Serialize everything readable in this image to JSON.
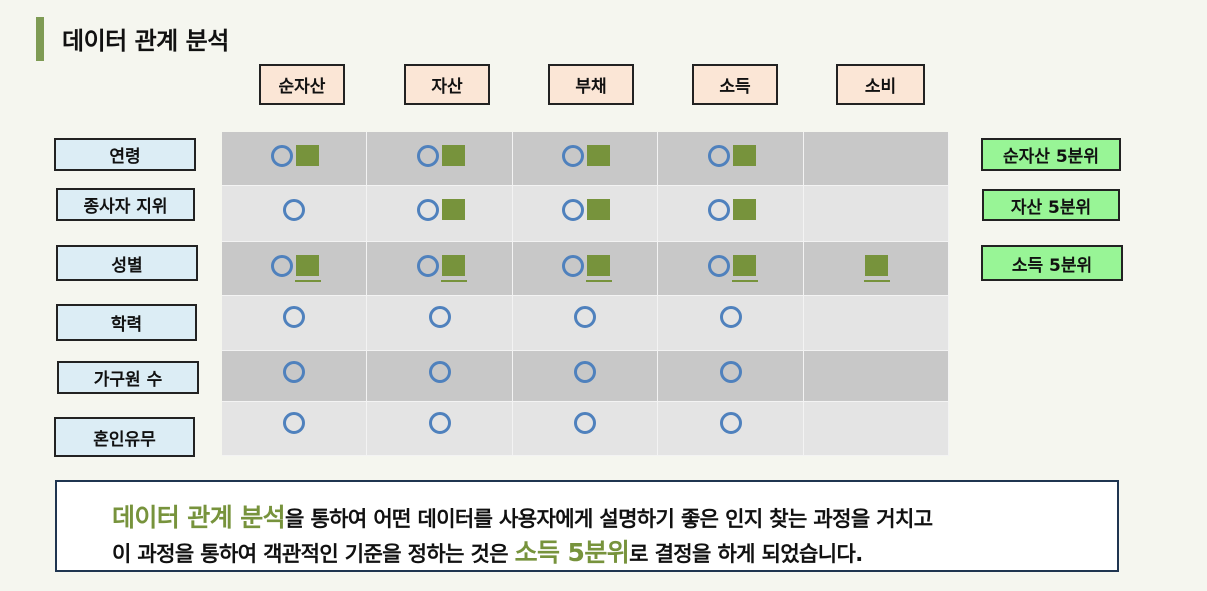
{
  "title": "데이터 관계 분석",
  "columns": [
    "순자산",
    "자산",
    "부채",
    "소득",
    "소비"
  ],
  "rows": [
    "연령",
    "종사자 지위",
    "성별",
    "학력",
    "가구원 수",
    "혼인유무"
  ],
  "matrix": [
    [
      "OS",
      "OS",
      "OS",
      "OS",
      ""
    ],
    [
      "O",
      "OS",
      "OS",
      "OS",
      ""
    ],
    [
      "OSU",
      "OSU",
      "OSU",
      "OSU",
      "SU"
    ],
    [
      "O",
      "O",
      "O",
      "O",
      ""
    ],
    [
      "O",
      "O",
      "O",
      "O",
      ""
    ],
    [
      "O",
      "O",
      "O",
      "O",
      ""
    ]
  ],
  "legend": {
    "circle": "circle-mark",
    "square": "square-mark",
    "colors": {
      "circle": "#4f81bd",
      "square": "#77933c",
      "accent": "#7e9b54"
    }
  },
  "quintiles": [
    "순자산 5분위",
    "자산 5분위",
    "소득 5분위"
  ],
  "conclusion": {
    "line1_highlight": "데이터 관계 분석",
    "line1_rest": "을 통하여 어떤 데이터를 사용자에게 설명하기 좋은 인지 찾는 과정을 거치고",
    "line2_pre": "이 과정을 통하여 객관적인 기준을 정하는 것은 ",
    "line2_highlight": "소득 5분위",
    "line2_post": "로 결정을 하게 되었습니다."
  }
}
